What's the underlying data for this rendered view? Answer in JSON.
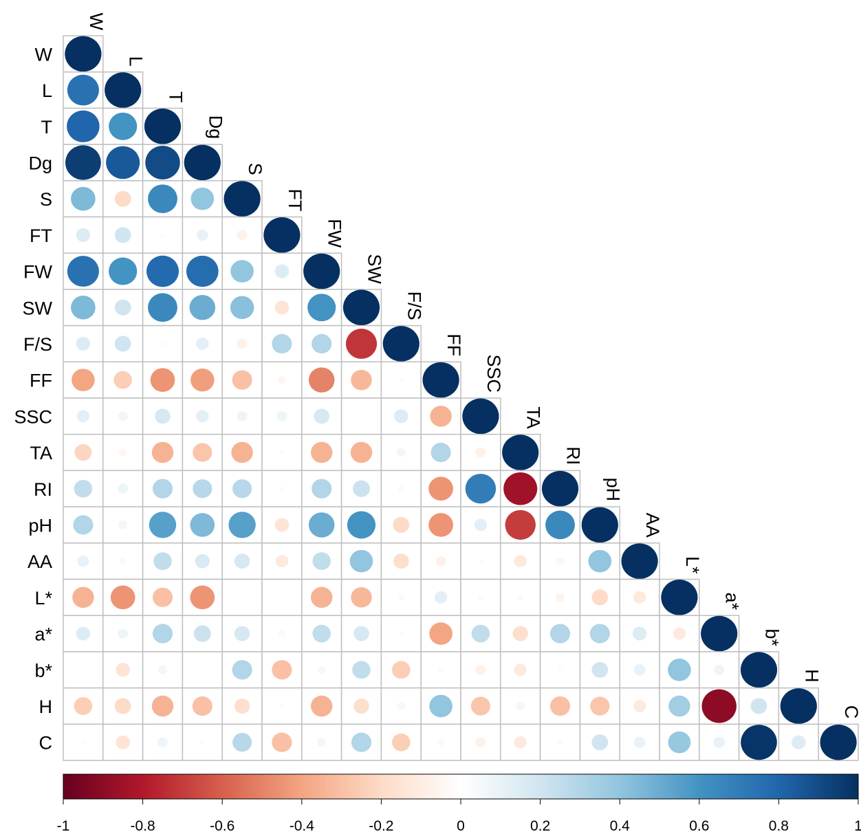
{
  "chart_data": {
    "type": "heatmap",
    "style": "corrplot lower triangle, circle glyphs sized and colored by correlation",
    "variables": [
      "W",
      "L",
      "T",
      "Dg",
      "S",
      "FT",
      "FW",
      "SW",
      "F/S",
      "FF",
      "SSC",
      "TA",
      "RI",
      "pH",
      "AA",
      "L*",
      "a*",
      "b*",
      "H",
      "C"
    ],
    "lower_triangle": [
      [
        1
      ],
      [
        0.75,
        1
      ],
      [
        0.8,
        0.6,
        1
      ],
      [
        0.95,
        0.85,
        0.9,
        1
      ],
      [
        0.45,
        -0.2,
        0.65,
        0.4,
        1
      ],
      [
        0.15,
        0.2,
        0.02,
        0.1,
        -0.08,
        1
      ],
      [
        0.75,
        0.6,
        0.78,
        0.77,
        0.4,
        0.15,
        1
      ],
      [
        0.45,
        0.2,
        0.65,
        0.5,
        0.42,
        -0.15,
        0.6,
        1
      ],
      [
        0.15,
        0.2,
        0.02,
        0.12,
        -0.08,
        0.3,
        0.3,
        -0.72,
        1
      ],
      [
        -0.4,
        -0.25,
        -0.45,
        -0.42,
        -0.3,
        -0.05,
        -0.5,
        -0.33,
        0.02,
        1
      ],
      [
        0.12,
        0.07,
        0.18,
        0.12,
        0.08,
        0.08,
        0.18,
        0,
        0.15,
        -0.35,
        1
      ],
      [
        -0.22,
        -0.05,
        -0.35,
        -0.28,
        -0.35,
        0.02,
        -0.35,
        -0.35,
        0.06,
        0.3,
        -0.08,
        1
      ],
      [
        0.25,
        0.08,
        0.3,
        0.28,
        0.28,
        0.02,
        0.3,
        0.22,
        0.03,
        -0.45,
        0.7,
        -0.85,
        1
      ],
      [
        0.3,
        0.06,
        0.55,
        0.45,
        0.55,
        -0.15,
        0.5,
        0.6,
        -0.2,
        -0.45,
        0.12,
        -0.7,
        0.65,
        1
      ],
      [
        0.1,
        0.04,
        0.25,
        0.16,
        0.18,
        -0.12,
        0.25,
        0.4,
        -0.18,
        -0.08,
        -0.02,
        -0.12,
        0.05,
        0.4,
        1
      ],
      [
        -0.35,
        -0.45,
        -0.3,
        -0.45,
        0,
        0,
        -0.35,
        -0.33,
        0.03,
        0.12,
        -0.03,
        0.03,
        -0.06,
        -0.2,
        -0.12,
        1
      ],
      [
        0.15,
        0.08,
        0.3,
        0.22,
        0.18,
        -0.04,
        0.25,
        0.18,
        -0.02,
        -0.4,
        0.25,
        -0.18,
        0.3,
        0.3,
        0.15,
        -0.12,
        1
      ],
      [
        0.01,
        -0.15,
        0.06,
        0.01,
        0.3,
        -0.3,
        0.05,
        0.25,
        -0.25,
        -0.03,
        -0.08,
        -0.12,
        0.02,
        0.2,
        0.1,
        0.4,
        0.08,
        1
      ],
      [
        -0.25,
        -0.2,
        -0.35,
        -0.3,
        -0.18,
        -0.02,
        -0.35,
        -0.18,
        -0.05,
        0.4,
        -0.28,
        0.06,
        -0.3,
        -0.28,
        -0.12,
        0.35,
        -0.9,
        0.2,
        1
      ],
      [
        0.02,
        -0.15,
        0.08,
        0.02,
        0.28,
        -0.3,
        0.06,
        0.3,
        -0.25,
        -0.04,
        -0.08,
        -0.12,
        0.03,
        0.2,
        0.1,
        0.38,
        0.1,
        0.98,
        0.15,
        1
      ]
    ],
    "colorbar": {
      "range": [
        -1,
        1
      ],
      "ticks": [
        "-1",
        "-0.8",
        "-0.6",
        "-0.4",
        "-0.2",
        "0",
        "0.2",
        "0.4",
        "0.6",
        "0.8",
        "1"
      ],
      "palette": [
        "#67001F",
        "#B2182B",
        "#D6604D",
        "#F4A582",
        "#FDDBC7",
        "#FFFFFF",
        "#D1E5F0",
        "#92C5DE",
        "#4393C3",
        "#2166AC",
        "#053061"
      ],
      "placement": "bottom"
    },
    "grid_color": "#BEBEBE"
  }
}
